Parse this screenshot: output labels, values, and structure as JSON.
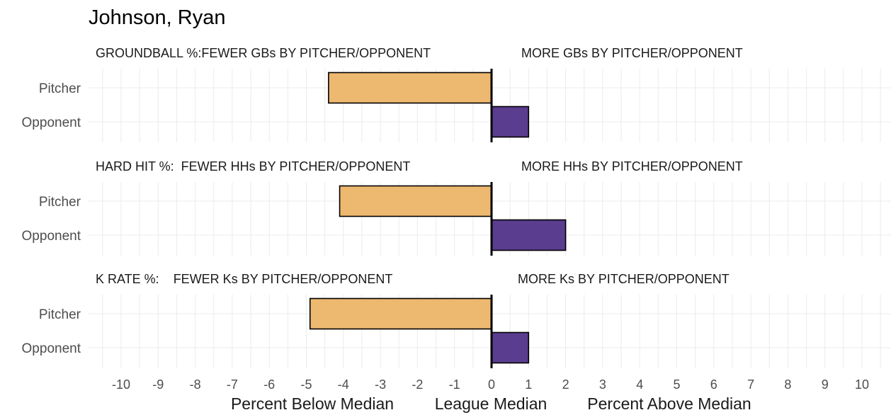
{
  "chart_data": {
    "type": "bar",
    "orientation": "horizontal",
    "title": "Johnson, Ryan",
    "xlim": [
      -10.8,
      10.8
    ],
    "xticks": [
      -10,
      -9,
      -8,
      -7,
      -6,
      -5,
      -4,
      -3,
      -2,
      -1,
      0,
      1,
      2,
      3,
      4,
      5,
      6,
      7,
      8,
      9,
      10
    ],
    "xlabels": [
      "Percent Below Median",
      "League Median",
      "Percent Above Median"
    ],
    "grid": true,
    "panels": [
      {
        "label_left": "GROUNDBALL %:FEWER GBs BY PITCHER/OPPONENT",
        "label_right": "MORE GBs BY PITCHER/OPPONENT",
        "categories": [
          "Pitcher",
          "Opponent"
        ],
        "values": [
          -4.4,
          1.0
        ]
      },
      {
        "label_left": "HARD HIT %:  FEWER HHs BY PITCHER/OPPONENT",
        "label_right": "MORE HHs BY PITCHER/OPPONENT",
        "categories": [
          "Pitcher",
          "Opponent"
        ],
        "values": [
          -4.1,
          2.0
        ]
      },
      {
        "label_left": "K RATE %:    FEWER Ks BY PITCHER/OPPONENT",
        "label_right": "MORE Ks BY PITCHER/OPPONENT",
        "categories": [
          "Pitcher",
          "Opponent"
        ],
        "values": [
          -4.9,
          1.0
        ]
      }
    ],
    "colors": {
      "Pitcher": "#EDB870",
      "Opponent": "#5A3D8E",
      "grid": "#EBEBEB",
      "median_line": "#000000"
    }
  }
}
